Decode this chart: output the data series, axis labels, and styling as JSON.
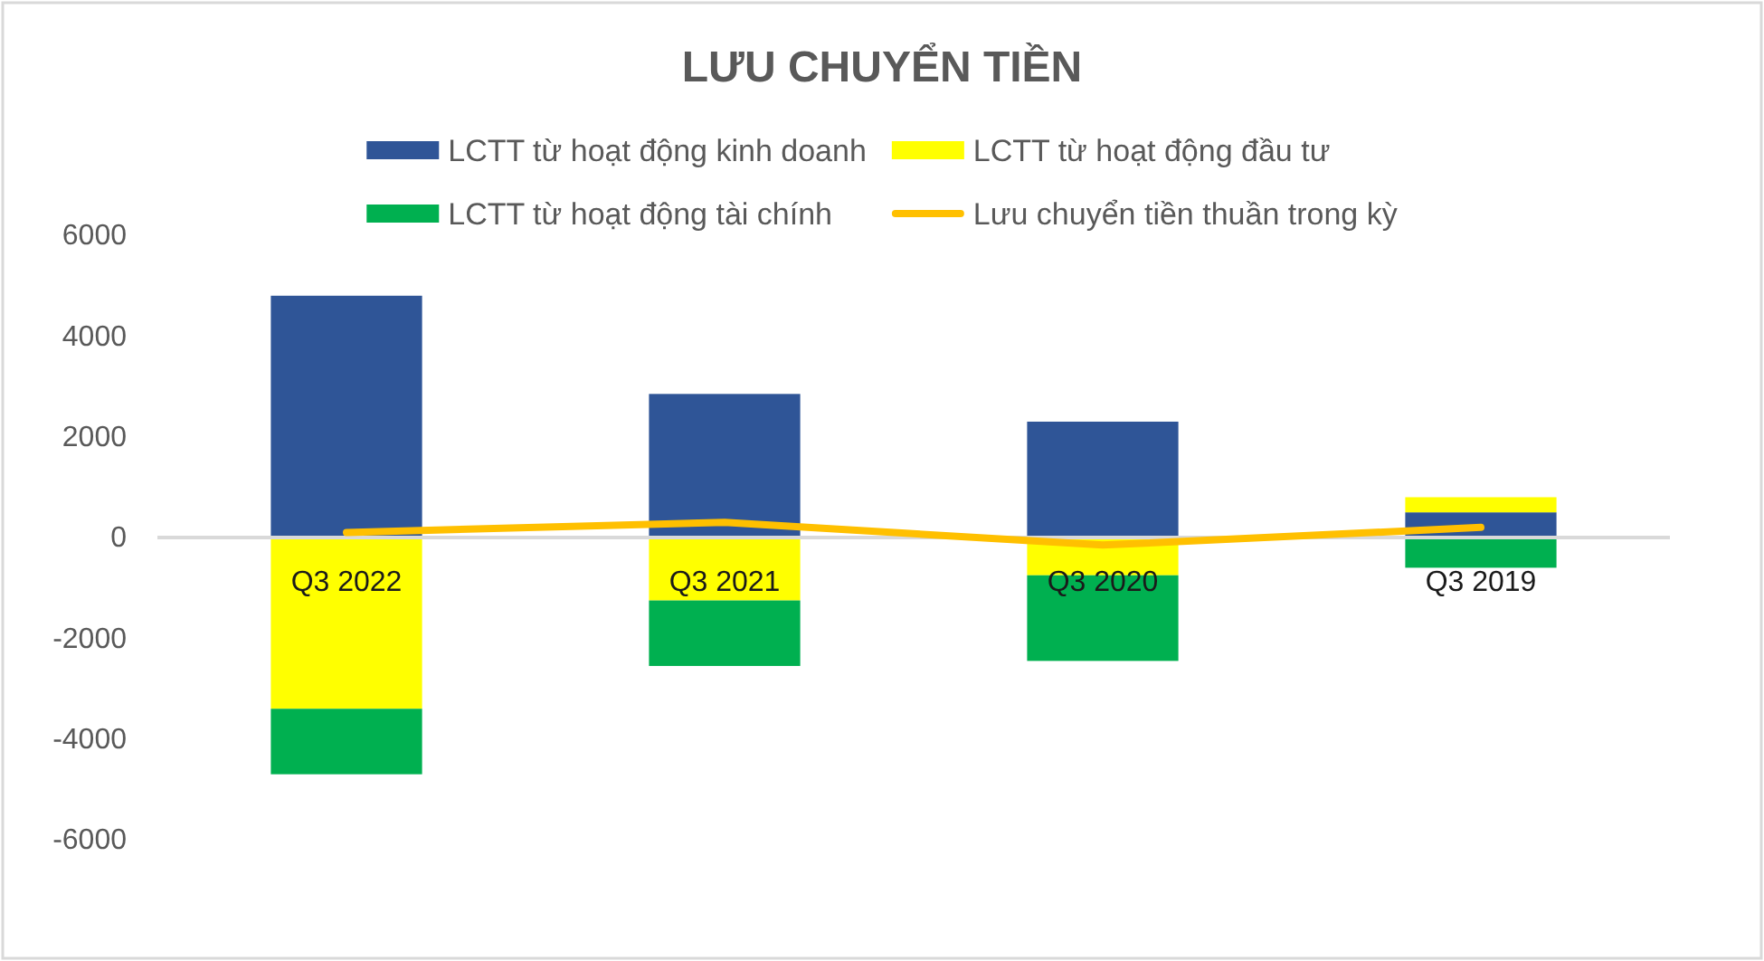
{
  "chart_data": {
    "type": "bar",
    "title": "LƯU CHUYỂN TIỀN",
    "categories": [
      "Q3 2022",
      "Q3 2021",
      "Q3 2020",
      "Q3 2019"
    ],
    "stacked": true,
    "legend": "top",
    "series": [
      {
        "name": "LCTT từ hoạt động kinh doanh",
        "color": "#2f5597",
        "values": [
          4800,
          2850,
          2300,
          500
        ]
      },
      {
        "name": "LCTT từ hoạt động đầu tư",
        "color": "#ffff00",
        "values": [
          -3400,
          -1250,
          -750,
          300
        ]
      },
      {
        "name": "LCTT từ hoạt động tài chính",
        "color": "#00b050",
        "values": [
          -1300,
          -1300,
          -1700,
          -600
        ]
      },
      {
        "type": "line",
        "name": "Lưu chuyển tiền thuần trong kỳ",
        "color": "#ffc000",
        "values": [
          100,
          300,
          -150,
          200
        ]
      }
    ],
    "ylim": [
      -6000,
      6000
    ],
    "yticks": [
      -6000,
      -4000,
      -2000,
      0,
      2000,
      4000,
      6000
    ]
  }
}
